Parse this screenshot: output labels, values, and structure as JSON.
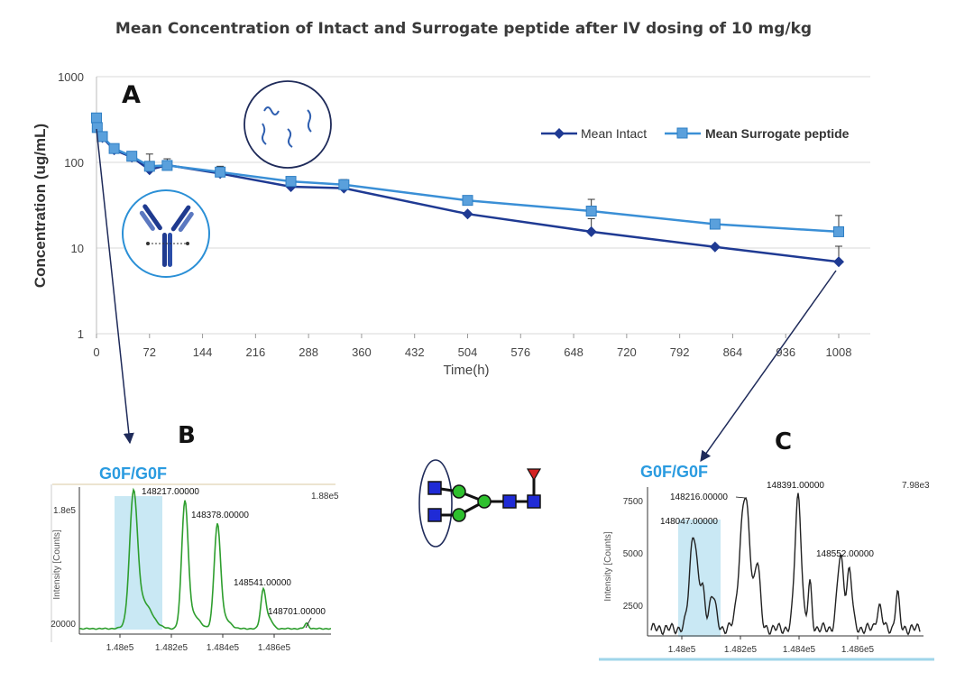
{
  "title": "Mean Concentration of Intact and Surrogate peptide after IV dosing of 10 mg/kg",
  "panels": {
    "A": "A",
    "B": "B",
    "C": "C"
  },
  "colors": {
    "intact": "#1f3a93",
    "surrogate": "#3a8fd6",
    "spectrum_b": "#2e9e2e",
    "spectrum_c": "#222222",
    "highlight": "#bfe4f2",
    "glycan_label": "#2a9be0"
  },
  "icons": [
    "antibody-icon",
    "peptide-fragments-icon",
    "glycan-structure-icon"
  ],
  "chart_data": [
    {
      "type": "line",
      "panel": "A",
      "xlabel": "Time(h)",
      "ylabel": "Concentration (ug/mL)",
      "yscale": "log",
      "xlim": [
        0,
        1008
      ],
      "ylim": [
        1,
        1000
      ],
      "xticks": [
        0,
        72,
        144,
        216,
        288,
        360,
        432,
        504,
        576,
        648,
        720,
        792,
        864,
        936,
        1008
      ],
      "yticks": [
        1,
        10,
        100,
        1000
      ],
      "grid": "horizontal",
      "legend": "top-right",
      "series": [
        {
          "name": "Mean Intact",
          "marker": "diamond",
          "x": [
            0,
            1,
            8,
            24,
            48,
            72,
            96,
            168,
            264,
            336,
            504,
            672,
            840,
            1008
          ],
          "y": [
            320,
            250,
            195,
            140,
            115,
            82,
            93,
            74,
            52,
            50,
            25,
            15.5,
            10.3,
            6.9
          ],
          "error_upper": [
            null,
            null,
            null,
            null,
            130,
            125,
            110,
            90,
            null,
            60,
            null,
            22,
            null,
            10.5
          ]
        },
        {
          "name": "Mean Surrogate peptide",
          "marker": "square",
          "x": [
            0,
            1,
            8,
            24,
            48,
            72,
            96,
            168,
            264,
            336,
            504,
            672,
            840,
            1008
          ],
          "y": [
            330,
            255,
            200,
            145,
            118,
            90,
            92,
            77,
            60,
            55,
            36,
            27,
            19,
            15.5
          ],
          "error_upper": [
            null,
            null,
            null,
            null,
            null,
            null,
            105,
            88,
            67,
            63,
            null,
            37,
            null,
            24
          ]
        }
      ]
    },
    {
      "type": "line",
      "panel": "B",
      "highlight_label": "G0F/G0F",
      "ylabel": "Intensity [Counts]",
      "max_label": "1.88e5",
      "xticks": [
        "1.48e5",
        "1.482e5",
        "1.484e5",
        "1.486e5"
      ],
      "yticks": [
        "20000",
        "1.8e5"
      ],
      "peak_labels": [
        "148217.00000",
        "148378.00000",
        "148541.00000",
        "148701.00000"
      ]
    },
    {
      "type": "line",
      "panel": "C",
      "highlight_label": "G0F/G0F",
      "ylabel": "Intensity [Counts]",
      "max_label": "7.98e3",
      "xticks": [
        "1.48e5",
        "1.482e5",
        "1.484e5",
        "1.486e5"
      ],
      "yticks": [
        "2500",
        "5000",
        "7500"
      ],
      "peak_labels": [
        "148216.00000",
        "148047.00000",
        "148391.00000",
        "148552.00000"
      ]
    }
  ]
}
